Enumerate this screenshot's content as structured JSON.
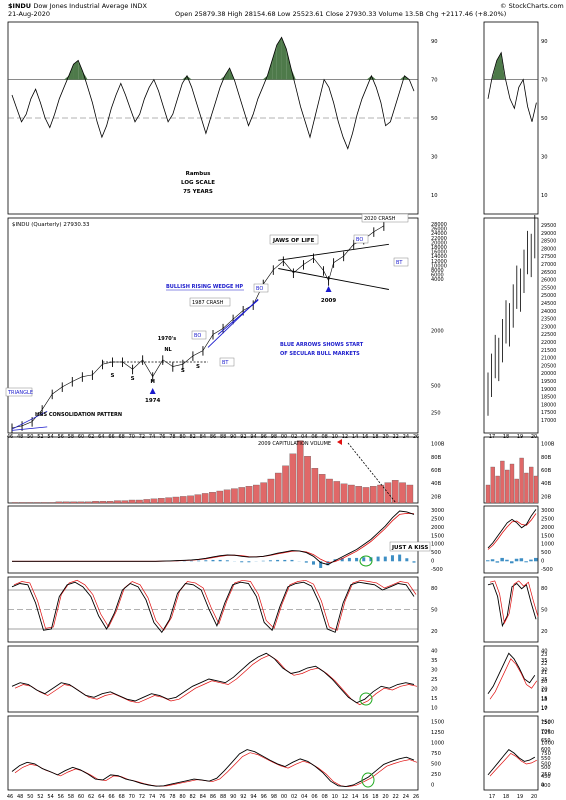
{
  "header": {
    "symbol": "$INDU",
    "name": "Dow Jones Industrial Average",
    "exchange": "INDX",
    "date": "21-Aug-2020",
    "open_label": "Open",
    "open": "25879.38",
    "high_label": "High",
    "high": "28154.68",
    "low_label": "Low",
    "low": "25523.61",
    "close_label": "Close",
    "close": "27930.33",
    "volume_label": "Volume",
    "volume": "13.5B",
    "chg_label": "Chg",
    "chg": "+2117.46 (+8.20%)",
    "credit": "© StockCharts.com"
  },
  "colors": {
    "rsi_fill": "#4e7a4a",
    "signal_line": "#e01010",
    "histogram": "#3d8ec4",
    "volume_bar": "#e06868",
    "annotation_blue": "#1a1acc",
    "kiss_circle": "#22aa22"
  },
  "chart_data": [
    {
      "panel": "rsi",
      "type": "line",
      "y_ticks": [
        "90",
        "70",
        "50",
        "30",
        "10"
      ],
      "ylim": [
        0,
        100
      ],
      "annotations": [
        "Rambus",
        "LOG SCALE",
        "75 YEARS"
      ],
      "values": [
        62,
        55,
        48,
        52,
        60,
        65,
        58,
        50,
        45,
        52,
        60,
        66,
        72,
        78,
        80,
        74,
        66,
        58,
        48,
        40,
        46,
        55,
        62,
        68,
        62,
        55,
        48,
        52,
        60,
        66,
        70,
        64,
        56,
        48,
        52,
        60,
        68,
        72,
        66,
        58,
        50,
        42,
        50,
        58,
        66,
        72,
        76,
        70,
        62,
        54,
        46,
        52,
        60,
        66,
        72,
        80,
        88,
        92,
        86,
        76,
        66,
        56,
        48,
        40,
        50,
        60,
        70,
        66,
        58,
        48,
        40,
        34,
        42,
        52,
        60,
        66,
        72,
        66,
        58,
        46,
        48,
        56,
        64,
        72,
        70,
        64
      ]
    },
    {
      "panel": "price",
      "type": "line",
      "title": "$INDU (Quarterly) 27930.33",
      "scale": "log",
      "x_ticks": [
        "46",
        "48",
        "50",
        "52",
        "54",
        "56",
        "58",
        "60",
        "62",
        "64",
        "66",
        "68",
        "70",
        "72",
        "74",
        "76",
        "78",
        "80",
        "82",
        "84",
        "86",
        "88",
        "90",
        "92",
        "94",
        "96",
        "98",
        "00",
        "02",
        "04",
        "06",
        "08",
        "10",
        "12",
        "14",
        "16",
        "18",
        "20",
        "22",
        "24",
        "26"
      ],
      "y_ticks": [
        "28000",
        "26000",
        "24000",
        "22000",
        "20000",
        "18000",
        "16000",
        "14000",
        "12000",
        "10000",
        "8000",
        "6000",
        "4000",
        "2000",
        "500",
        "250"
      ],
      "x": [
        1946,
        1948,
        1950,
        1952,
        1954,
        1956,
        1958,
        1960,
        1962,
        1964,
        1966,
        1968,
        1970,
        1972,
        1974,
        1976,
        1978,
        1980,
        1982,
        1984,
        1986,
        1988,
        1990,
        1992,
        1994,
        1996,
        1998,
        2000,
        2002,
        2004,
        2006,
        2008,
        2009,
        2010,
        2012,
        2014,
        2016,
        2018,
        2020
      ],
      "values": [
        170,
        180,
        200,
        270,
        400,
        480,
        550,
        620,
        650,
        850,
        900,
        900,
        750,
        950,
        620,
        950,
        800,
        850,
        1050,
        1200,
        1800,
        2100,
        2650,
        3300,
        3800,
        6400,
        9200,
        11500,
        8500,
        10500,
        12400,
        9000,
        7000,
        11000,
        13000,
        17500,
        19800,
        24000,
        27930
      ],
      "annotations": [
        "TRIANGLE",
        "H&S CONSOLIDATION PATTERN",
        "1970's",
        "NL",
        "S",
        "S",
        "S",
        "S",
        "H",
        "1974",
        "BO",
        "BT",
        "1987 CRASH",
        "BO",
        "BULLISH RISING WEDGE HP",
        "JAWS OF LIFE",
        "BO",
        "BT",
        "2009",
        "2020 CRASH",
        "BLUE ARROWS SHOWS START",
        "OF SECULAR BULL MARKETS"
      ]
    },
    {
      "panel": "volume",
      "type": "bar",
      "y_ticks": [
        "100B",
        "80B",
        "60B",
        "40B",
        "20B"
      ],
      "ylim": [
        0,
        110
      ],
      "annotations": [
        "2009 CAPITULATION VOLUME"
      ],
      "values": [
        1,
        1,
        1,
        1,
        1,
        1,
        2,
        2,
        2,
        2,
        2,
        3,
        3,
        3,
        4,
        4,
        5,
        5,
        6,
        7,
        8,
        9,
        10,
        11,
        12,
        14,
        16,
        18,
        20,
        22,
        24,
        26,
        28,
        30,
        34,
        40,
        50,
        62,
        82,
        104,
        78,
        58,
        48,
        40,
        36,
        32,
        30,
        28,
        26,
        28,
        30,
        34,
        38,
        34,
        30
      ]
    },
    {
      "panel": "macd",
      "type": "line",
      "y_ticks": [
        "3000",
        "2500",
        "2000",
        "1500",
        "1000",
        "500",
        "0",
        "-500"
      ],
      "ylim": [
        -700,
        3300
      ],
      "annotations": [
        "JUST A KISS"
      ],
      "macd": [
        0,
        0,
        0,
        0,
        0,
        0,
        0,
        0,
        0,
        0,
        0,
        0,
        0,
        0,
        0,
        0,
        0,
        0,
        0,
        0,
        0,
        10,
        20,
        40,
        60,
        80,
        120,
        180,
        260,
        330,
        380,
        360,
        300,
        250,
        260,
        300,
        380,
        480,
        560,
        640,
        620,
        520,
        300,
        -80,
        -200,
        40,
        260,
        480,
        700,
        1000,
        1300,
        1700,
        2100,
        2600,
        3000,
        2950,
        2800
      ],
      "signal": [
        0,
        0,
        0,
        0,
        0,
        0,
        0,
        0,
        0,
        0,
        0,
        0,
        0,
        0,
        0,
        0,
        0,
        0,
        0,
        0,
        0,
        5,
        15,
        30,
        45,
        65,
        100,
        150,
        220,
        290,
        350,
        365,
        330,
        280,
        265,
        285,
        350,
        440,
        520,
        600,
        615,
        560,
        400,
        120,
        -80,
        -20,
        160,
        380,
        600,
        880,
        1180,
        1560,
        1960,
        2420,
        2800,
        2860,
        2840
      ]
    },
    {
      "panel": "stochastic",
      "type": "line",
      "y_ticks": [
        "80",
        "50",
        "20"
      ],
      "ylim": [
        0,
        100
      ],
      "values": [
        85,
        90,
        88,
        60,
        18,
        20,
        70,
        88,
        92,
        85,
        70,
        40,
        20,
        45,
        80,
        90,
        85,
        65,
        30,
        15,
        35,
        75,
        90,
        88,
        80,
        50,
        25,
        60,
        88,
        92,
        90,
        70,
        30,
        18,
        55,
        85,
        90,
        92,
        86,
        60,
        20,
        15,
        60,
        88,
        92,
        90,
        88,
        80,
        85,
        90,
        88,
        70
      ]
    },
    {
      "panel": "rsi_smooth",
      "type": "line",
      "y_ticks": [
        "40",
        "35",
        "30",
        "25",
        "20",
        "15",
        "10"
      ],
      "ylim": [
        6,
        42
      ],
      "values": [
        20,
        22,
        21,
        18,
        16,
        19,
        22,
        21,
        18,
        15,
        14,
        16,
        17,
        15,
        13,
        12,
        14,
        16,
        15,
        13,
        14,
        17,
        20,
        22,
        24,
        23,
        22,
        25,
        29,
        33,
        36,
        38,
        35,
        30,
        27,
        28,
        30,
        31,
        28,
        24,
        19,
        14,
        11,
        13,
        17,
        20,
        19,
        21,
        22,
        21
      ]
    },
    {
      "panel": "momentum",
      "type": "line",
      "y_ticks": [
        "1500",
        "1250",
        "1000",
        "750",
        "500",
        "250",
        "0"
      ],
      "ylim": [
        -60,
        1700
      ],
      "values": [
        380,
        520,
        600,
        560,
        450,
        380,
        300,
        400,
        480,
        420,
        320,
        200,
        180,
        300,
        280,
        200,
        160,
        100,
        60,
        30,
        40,
        80,
        120,
        160,
        200,
        180,
        150,
        220,
        400,
        600,
        800,
        900,
        850,
        750,
        650,
        560,
        500,
        600,
        680,
        620,
        500,
        350,
        150,
        40,
        20,
        60,
        150,
        250,
        400,
        550,
        620,
        680,
        720,
        650
      ]
    }
  ]
}
